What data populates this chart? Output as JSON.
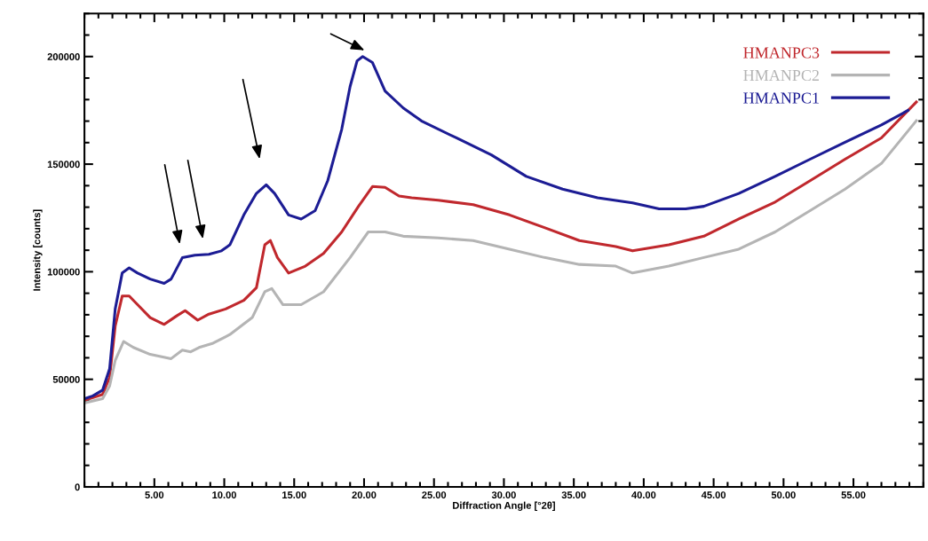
{
  "chart_data": {
    "type": "line",
    "xlabel": "Diffraction Angle [°2θ]",
    "ylabel": "Intensity [counts]",
    "xlim": [
      0,
      60
    ],
    "ylim": [
      0,
      220000
    ],
    "xticks": [
      {
        "value": 5,
        "label": "5.00"
      },
      {
        "value": 10,
        "label": "10.00"
      },
      {
        "value": 15,
        "label": "15.00"
      },
      {
        "value": 20,
        "label": "20.00"
      },
      {
        "value": 25,
        "label": "25.00"
      },
      {
        "value": 30,
        "label": "30.00"
      },
      {
        "value": 35,
        "label": "35.00"
      },
      {
        "value": 40,
        "label": "40.00"
      },
      {
        "value": 45,
        "label": "45.00"
      },
      {
        "value": 50,
        "label": "50.00"
      },
      {
        "value": 55,
        "label": "55.00"
      }
    ],
    "yticks": [
      0,
      50000,
      100000,
      150000,
      200000
    ],
    "grid": false,
    "legend": "top right",
    "marker": "none",
    "line_style": "solid",
    "series": [
      {
        "name": "HMANPC3",
        "color": "#c0282d",
        "x": [
          0,
          1.3,
          1.8,
          2.2,
          2.7,
          3.2,
          3.8,
          4.7,
          5.7,
          6.6,
          7.2,
          8.1,
          8.9,
          10.1,
          11.4,
          12.3,
          12.9,
          13.3,
          13.8,
          14.6,
          15.8,
          17.1,
          18.4,
          19.6,
          20.6,
          21.5,
          22.5,
          23.4,
          25.3,
          27.8,
          30.4,
          32.9,
          35.4,
          38.0,
          39.2,
          41.8,
          44.3,
          46.8,
          49.4,
          51.9,
          54.4,
          57.0,
          59.5
        ],
        "values": [
          40200,
          43000,
          50900,
          74700,
          88700,
          88700,
          84700,
          78700,
          75500,
          79500,
          81900,
          77500,
          80300,
          82700,
          86700,
          92600,
          112500,
          114500,
          106600,
          99400,
          102600,
          108500,
          118500,
          130400,
          139600,
          139200,
          135200,
          134400,
          133200,
          131200,
          126400,
          120500,
          114500,
          111700,
          109700,
          112500,
          116500,
          124500,
          132400,
          142300,
          152300,
          162200,
          178900
        ]
      },
      {
        "name": "HMANPC2",
        "color": "#b4b4b4",
        "x": [
          0,
          1.3,
          1.8,
          2.2,
          2.8,
          3.5,
          4.7,
          6.2,
          7.0,
          7.6,
          8.2,
          9.2,
          10.4,
          12.0,
          12.9,
          13.4,
          14.2,
          15.5,
          17.1,
          19.0,
          20.3,
          21.5,
          22.8,
          25.3,
          27.8,
          30.4,
          32.9,
          35.4,
          38.0,
          39.2,
          41.8,
          44.3,
          46.8,
          49.4,
          51.9,
          54.4,
          57.0,
          59.5
        ],
        "values": [
          39000,
          41000,
          46900,
          58800,
          67600,
          64800,
          61600,
          59600,
          63600,
          62800,
          64800,
          66800,
          70800,
          78700,
          90700,
          92200,
          84700,
          84700,
          90700,
          106600,
          118500,
          118500,
          116500,
          115700,
          114500,
          110500,
          106600,
          103400,
          102600,
          99400,
          102600,
          106600,
          110500,
          118500,
          128400,
          138400,
          150300,
          170200
        ]
      },
      {
        "name": "HMANPC1",
        "color": "#1c1c94",
        "x": [
          0,
          0.6,
          1.3,
          1.8,
          2.2,
          2.7,
          3.2,
          3.8,
          4.7,
          5.7,
          6.2,
          7.0,
          7.9,
          8.9,
          9.8,
          10.4,
          11.4,
          12.3,
          13.0,
          13.6,
          14.6,
          15.5,
          16.5,
          17.4,
          18.4,
          19.0,
          19.5,
          19.9,
          20.6,
          21.5,
          22.8,
          24.1,
          26.6,
          29.1,
          31.6,
          34.2,
          36.7,
          39.2,
          41.1,
          43.0,
          44.3,
          46.8,
          49.4,
          51.9,
          54.4,
          57.0,
          58.9
        ],
        "values": [
          41000,
          42300,
          45000,
          54900,
          82700,
          99400,
          101800,
          99400,
          96600,
          94600,
          96600,
          106500,
          107700,
          108100,
          109700,
          112500,
          126400,
          136400,
          140400,
          136400,
          126400,
          124500,
          128400,
          142300,
          166200,
          186100,
          198000,
          200000,
          197200,
          184000,
          176100,
          170100,
          162200,
          154300,
          144300,
          138400,
          134400,
          132000,
          129200,
          129200,
          130400,
          136400,
          144300,
          152300,
          160200,
          168200,
          175000
        ]
      }
    ]
  }
}
